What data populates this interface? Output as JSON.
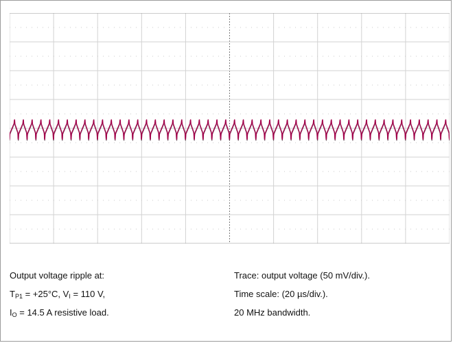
{
  "chart_data": {
    "type": "line",
    "xlim": [
      0,
      200
    ],
    "ylim": [
      -200,
      200
    ],
    "grid": true,
    "x_divisions": 10,
    "y_divisions": 8,
    "colors": {
      "trace": "#a3004a",
      "trace_dark": "#3a1a2a",
      "grid": "#d2d2d2",
      "dots": "#c9c9c9",
      "axis": "#7a7a7a"
    },
    "series": [
      {
        "ripple_period_us": 4,
        "dc_level_mv": 0,
        "ripple_peak_to_peak_mv": 20,
        "spike_mv": 12
      }
    ]
  },
  "caption_left": {
    "line1": "Output voltage ripple  at:",
    "line2": {
      "t": "T",
      "t_sub": "P1",
      "t_val": " = +25°C, V",
      "v_sub": "I",
      "v_val": " = 110 V,"
    },
    "line3": {
      "i": "I",
      "i_sub": "O",
      "i_val": " = 14.5 A resistive load."
    }
  },
  "caption_right": {
    "line1": "Trace: output voltage (50 mV/div.).",
    "line2": "Time scale: (20 µs/div.).",
    "line3": "20 MHz bandwidth."
  }
}
